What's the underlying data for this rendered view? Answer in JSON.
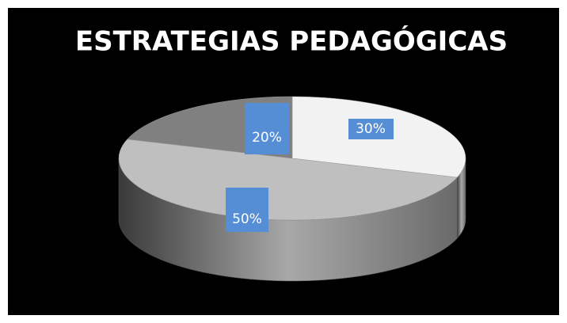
{
  "chart_data": {
    "type": "pie",
    "title": "ESTRATEGIAS PEDAGÓGICAS",
    "values": [
      30,
      50,
      20
    ],
    "value_labels": [
      "30%",
      "50%",
      "20%"
    ],
    "colors": [
      "#f2f2f2",
      "#bfbfbf",
      "#808080"
    ],
    "label_color": "#558ed5"
  }
}
